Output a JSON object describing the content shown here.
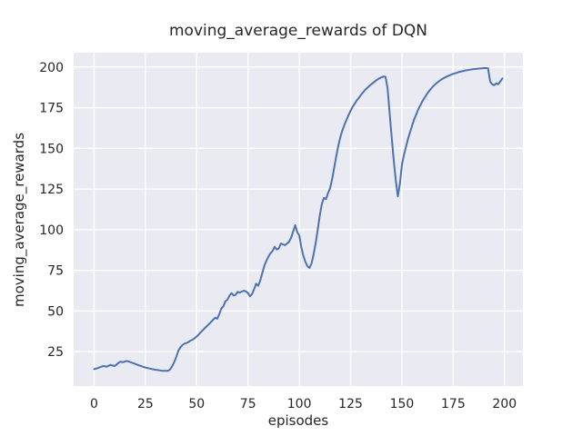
{
  "colors": {
    "line": "#4c72b0",
    "plot_bg": "#eaeaf2",
    "grid": "#ffffff",
    "figure_bg": "#ffffff",
    "text": "#262626"
  },
  "chart_data": {
    "type": "line",
    "title": "moving_average_rewards of DQN",
    "xlabel": "episodes",
    "ylabel": "moving_average_rewards",
    "x_ticks": [
      0,
      25,
      50,
      75,
      100,
      125,
      150,
      175,
      200
    ],
    "y_ticks": [
      25,
      50,
      75,
      100,
      125,
      150,
      175,
      200
    ],
    "xlim": [
      -9.95,
      208.95
    ],
    "ylim": [
      3.9,
      208.8
    ],
    "grid": true,
    "legend": "none",
    "series": [
      {
        "name": "DQN",
        "x_start": 0,
        "x_step": 1,
        "y": [
          14.3,
          14.6,
          15.0,
          15.5,
          16.0,
          16.2,
          15.8,
          16.3,
          16.9,
          16.5,
          16.2,
          17.2,
          18.2,
          18.9,
          18.5,
          19.0,
          19.3,
          18.9,
          18.4,
          18.0,
          17.5,
          17.0,
          16.6,
          16.1,
          15.7,
          15.3,
          15.0,
          14.7,
          14.4,
          14.1,
          13.9,
          13.7,
          13.5,
          13.3,
          13.2,
          13.2,
          13.3,
          14.0,
          16.0,
          18.5,
          21.5,
          25.5,
          27.5,
          29.0,
          30.0,
          30.3,
          31.0,
          31.8,
          32.4,
          33.3,
          34.3,
          35.6,
          37.0,
          38.3,
          39.6,
          40.8,
          42.0,
          43.3,
          44.6,
          45.9,
          45.3,
          48.0,
          51.5,
          53.0,
          56.0,
          57.0,
          59.5,
          61.0,
          59.5,
          60.0,
          61.8,
          61.3,
          62.0,
          62.5,
          62.0,
          61.0,
          59.0,
          60.5,
          63.5,
          66.8,
          65.5,
          69.0,
          73.5,
          78.0,
          81.0,
          83.5,
          85.5,
          87.0,
          89.5,
          87.8,
          88.5,
          91.5,
          91.0,
          90.5,
          91.5,
          92.5,
          95.0,
          99.0,
          102.8,
          98.5,
          96.5,
          89.0,
          84.0,
          80.0,
          77.5,
          76.5,
          79.5,
          85.0,
          92.0,
          100.0,
          109.0,
          116.0,
          119.5,
          118.8,
          122.5,
          125.5,
          131.0,
          138.0,
          145.0,
          151.5,
          157.0,
          161.0,
          164.5,
          167.5,
          170.5,
          173.0,
          175.5,
          177.5,
          179.5,
          181.0,
          182.8,
          184.3,
          185.8,
          187.0,
          188.2,
          189.3,
          190.3,
          191.3,
          192.2,
          193.0,
          193.6,
          194.2,
          194.0,
          187.0,
          172.0,
          157.0,
          143.0,
          130.5,
          120.5,
          128.0,
          140.0,
          146.0,
          151.0,
          156.0,
          160.0,
          164.0,
          168.0,
          171.0,
          174.0,
          176.5,
          179.0,
          181.0,
          183.0,
          184.8,
          186.4,
          187.8,
          189.1,
          190.2,
          191.2,
          192.1,
          192.9,
          193.6,
          194.2,
          194.8,
          195.3,
          195.8,
          196.2,
          196.6,
          197.0,
          197.3,
          197.6,
          197.9,
          198.1,
          198.3,
          198.5,
          198.7,
          198.8,
          199.0,
          199.1,
          199.2,
          199.3,
          199.3,
          199.2,
          191.0,
          189.3,
          188.8,
          190.0,
          189.4,
          191.2,
          193.0
        ]
      }
    ]
  }
}
